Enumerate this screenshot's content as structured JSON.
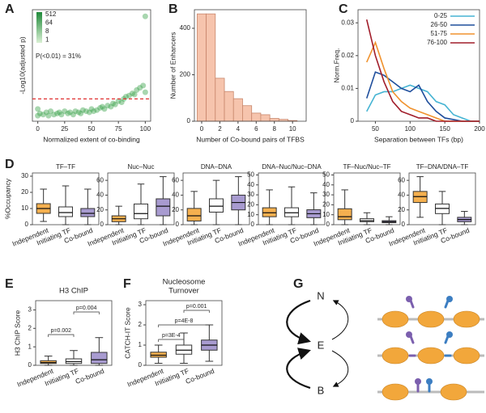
{
  "chart_data": [
    {
      "type": "scatter",
      "panel": "A",
      "xlabel": "Normalized extent of co-binding",
      "ylabel": "-Log10(adjusted p)",
      "annotation": "P(<0.01) = 31%",
      "color": "#3fa34d",
      "colorbar_ticks": [
        512,
        64,
        8,
        1
      ],
      "threshold": 2,
      "threshold_color": "#e03030",
      "xlim": [
        -5,
        105
      ],
      "ylim": [
        0,
        10
      ],
      "xticks": [
        0,
        25,
        50,
        75,
        100
      ],
      "x": [
        0,
        0,
        2,
        5,
        8,
        10,
        12,
        15,
        18,
        20,
        22,
        25,
        28,
        30,
        33,
        35,
        38,
        40,
        42,
        45,
        48,
        50,
        52,
        55,
        58,
        60,
        62,
        65,
        68,
        70,
        72,
        75,
        78,
        80,
        82,
        85,
        88,
        90,
        92,
        95,
        98,
        100,
        100
      ],
      "values": [
        0.5,
        1.1,
        0.7,
        0.6,
        0.8,
        0.5,
        0.9,
        0.6,
        0.7,
        0.8,
        0.6,
        0.9,
        0.7,
        0.8,
        0.6,
        0.9,
        0.8,
        0.7,
        1.0,
        0.9,
        0.8,
        1.1,
        0.9,
        1.0,
        1.2,
        1.3,
        1.1,
        1.4,
        1.3,
        1.6,
        1.5,
        1.8,
        1.7,
        2.0,
        2.2,
        2.3,
        2.5,
        2.4,
        2.8,
        3.0,
        3.2,
        2.6,
        9.4
      ]
    },
    {
      "type": "histogram",
      "panel": "B",
      "xlabel": "Number of Co-bound pairs of TFBS",
      "ylabel": "Number of Enhancers",
      "color": "#f6c4ad",
      "edge_color": "#c8876c",
      "bins": [
        -0.5,
        0.5,
        1.5,
        2.5,
        3.5,
        4.5,
        5.5,
        6.5,
        7.5,
        8.5,
        9.5,
        10.5
      ],
      "values": [
        462,
        462,
        185,
        128,
        97,
        67,
        35,
        28,
        12,
        8,
        3
      ],
      "xlim": [
        -0.8,
        11.5
      ],
      "ylim": [
        0,
        480
      ],
      "xticks": [
        0,
        2,
        4,
        6,
        8,
        10
      ],
      "yticks": [
        0,
        200,
        400
      ]
    },
    {
      "type": "line",
      "panel": "C",
      "xlabel": "Separation between TFs (bp)",
      "ylabel": "Norm.Freq.",
      "x": [
        37.5,
        50,
        62.5,
        75,
        87.5,
        100,
        112.5,
        125,
        137.5,
        150,
        162.5,
        175,
        187.5,
        200
      ],
      "series": [
        {
          "name": "0-25",
          "color": "#46b4d3",
          "values": [
            0.003,
            0.008,
            0.009,
            0.009,
            0.01,
            0.011,
            0.01,
            0.009,
            0.006,
            0.005,
            0.002,
            0.001,
            0,
            0
          ]
        },
        {
          "name": "26-50",
          "color": "#1f4e9c",
          "values": [
            0.007,
            0.015,
            0.014,
            0.012,
            0.01,
            0.009,
            0.011,
            0.006,
            0.003,
            0.001,
            0.0005,
            0,
            0,
            0
          ]
        },
        {
          "name": "51-75",
          "color": "#f0922e",
          "values": [
            0.018,
            0.024,
            0.016,
            0.009,
            0.006,
            0.004,
            0.003,
            0.002,
            0.001,
            0,
            0,
            0,
            0,
            0
          ]
        },
        {
          "name": "76-100",
          "color": "#a11d2a",
          "values": [
            0.031,
            0.02,
            0.012,
            0.006,
            0.003,
            0.002,
            0.001,
            0.001,
            0,
            0,
            0,
            0,
            0,
            0
          ]
        }
      ],
      "xlim": [
        25,
        200
      ],
      "ylim": [
        0,
        0.034
      ],
      "xticks": [
        50,
        100,
        150,
        200
      ],
      "yticks": [
        0,
        0.01,
        0.02,
        0.03
      ]
    },
    {
      "type": "box",
      "panel": "D",
      "ylabel": "%Occupancy",
      "categories": [
        "Independent",
        "Initiating TF",
        "Co-bound"
      ],
      "colors": [
        "#f5b04f",
        "#ffffff",
        "#a89bd0"
      ],
      "facets": [
        {
          "title": "TF–TF",
          "ylim": [
            0,
            32
          ],
          "yticks": [
            0,
            10,
            20,
            30
          ],
          "boxes": [
            {
              "whislo": 2,
              "q1": 7,
              "median": 10,
              "q3": 13,
              "whishi": 22
            },
            {
              "whislo": 0,
              "q1": 5,
              "median": 7.5,
              "q3": 11,
              "whishi": 24
            },
            {
              "whislo": 0,
              "q1": 5,
              "median": 7,
              "q3": 10,
              "whishi": 22
            }
          ]
        },
        {
          "title": "Nuc–Nuc",
          "ylim": [
            0,
            70
          ],
          "yticks": [
            0,
            20,
            40,
            60
          ],
          "boxes": [
            {
              "whislo": 0,
              "q1": 4,
              "median": 8,
              "q3": 12,
              "whishi": 25
            },
            {
              "whislo": 0,
              "q1": 8,
              "median": 15,
              "q3": 28,
              "whishi": 55
            },
            {
              "whislo": 0,
              "q1": 12,
              "median": 25,
              "q3": 35,
              "whishi": 65
            }
          ]
        },
        {
          "title": "DNA–DNA",
          "ylim": [
            0,
            70
          ],
          "yticks": [
            0,
            20,
            40,
            60
          ],
          "boxes": [
            {
              "whislo": 0,
              "q1": 5,
              "median": 12,
              "q3": 22,
              "whishi": 45
            },
            {
              "whislo": 0,
              "q1": 17,
              "median": 25,
              "q3": 35,
              "whishi": 60
            },
            {
              "whislo": 0,
              "q1": 20,
              "median": 30,
              "q3": 40,
              "whishi": 65
            }
          ]
        },
        {
          "title": "DNA–Nuc/Nuc–DNA",
          "ylim": [
            0,
            52
          ],
          "yticks": [
            0,
            10,
            20,
            30,
            40,
            50
          ],
          "boxes": [
            {
              "whislo": 0,
              "q1": 8,
              "median": 12,
              "q3": 17,
              "whishi": 35
            },
            {
              "whislo": 0,
              "q1": 8,
              "median": 12,
              "q3": 17,
              "whishi": 38
            },
            {
              "whislo": 0,
              "q1": 7,
              "median": 11,
              "q3": 15,
              "whishi": 32
            }
          ]
        },
        {
          "title": "TF–Nuc/Nuc–TF",
          "ylim": [
            0,
            52
          ],
          "yticks": [
            0,
            10,
            20,
            30,
            40,
            50
          ],
          "boxes": [
            {
              "whislo": 0,
              "q1": 5,
              "median": 8,
              "q3": 16,
              "whishi": 35
            },
            {
              "whislo": 0,
              "q1": 3,
              "median": 4,
              "q3": 6,
              "whishi": 12
            },
            {
              "whislo": 0,
              "q1": 2,
              "median": 3,
              "q3": 4,
              "whishi": 8
            }
          ]
        },
        {
          "title": "TF–DNA/DNA–TF",
          "ylim": [
            0,
            70
          ],
          "yticks": [
            0,
            20,
            40,
            60
          ],
          "boxes": [
            {
              "whislo": 10,
              "q1": 30,
              "median": 38,
              "q3": 45,
              "whishi": 65
            },
            {
              "whislo": 0,
              "q1": 15,
              "median": 22,
              "q3": 28,
              "whishi": 45
            },
            {
              "whislo": 0,
              "q1": 4,
              "median": 7,
              "q3": 10,
              "whishi": 18
            }
          ]
        }
      ]
    },
    {
      "type": "box",
      "panel": "E",
      "title": [
        "H3 ChIP"
      ],
      "ylabel": "H3 ChIP Score",
      "categories": [
        "Independent",
        "Initiating TF",
        "Co-bound"
      ],
      "colors": [
        "#f5b04f",
        "#ffffff",
        "#a89bd0"
      ],
      "annotations": [
        "p=0.002",
        "p=0.004"
      ],
      "facets": [
        {
          "ylim": [
            0,
            3.5
          ],
          "yticks": [
            0,
            1,
            2,
            3
          ],
          "boxes": [
            {
              "whislo": 0,
              "q1": 0.1,
              "median": 0.15,
              "q3": 0.25,
              "whishi": 0.5
            },
            {
              "whislo": 0,
              "q1": 0.1,
              "median": 0.2,
              "q3": 0.35,
              "whishi": 0.8
            },
            {
              "whislo": 0,
              "q1": 0.1,
              "median": 0.3,
              "q3": 0.7,
              "whishi": 1.5
            }
          ]
        }
      ]
    },
    {
      "type": "box",
      "panel": "F",
      "title": [
        "Nucleosome",
        "Turnover"
      ],
      "ylabel": "CATCH-IT Score",
      "categories": [
        "Independent",
        "Initiating TF",
        "Co-bound"
      ],
      "colors": [
        "#f5b04f",
        "#ffffff",
        "#a89bd0"
      ],
      "annotations": [
        "p=3E-4",
        "p=4E-8",
        "p=0.001"
      ],
      "facets": [
        {
          "ylim": [
            0,
            3.2
          ],
          "yticks": [
            0,
            1,
            2,
            3
          ],
          "boxes": [
            {
              "whislo": 0.1,
              "q1": 0.4,
              "median": 0.5,
              "q3": 0.65,
              "whishi": 1.0
            },
            {
              "whislo": 0.1,
              "q1": 0.55,
              "median": 0.75,
              "q3": 1.0,
              "whishi": 1.6
            },
            {
              "whislo": 0.2,
              "q1": 0.75,
              "median": 1.0,
              "q3": 1.25,
              "whishi": 2.0
            }
          ]
        }
      ]
    },
    {
      "type": "diagram",
      "panel": "G",
      "nodes": [
        "N",
        "E",
        "B"
      ]
    }
  ]
}
